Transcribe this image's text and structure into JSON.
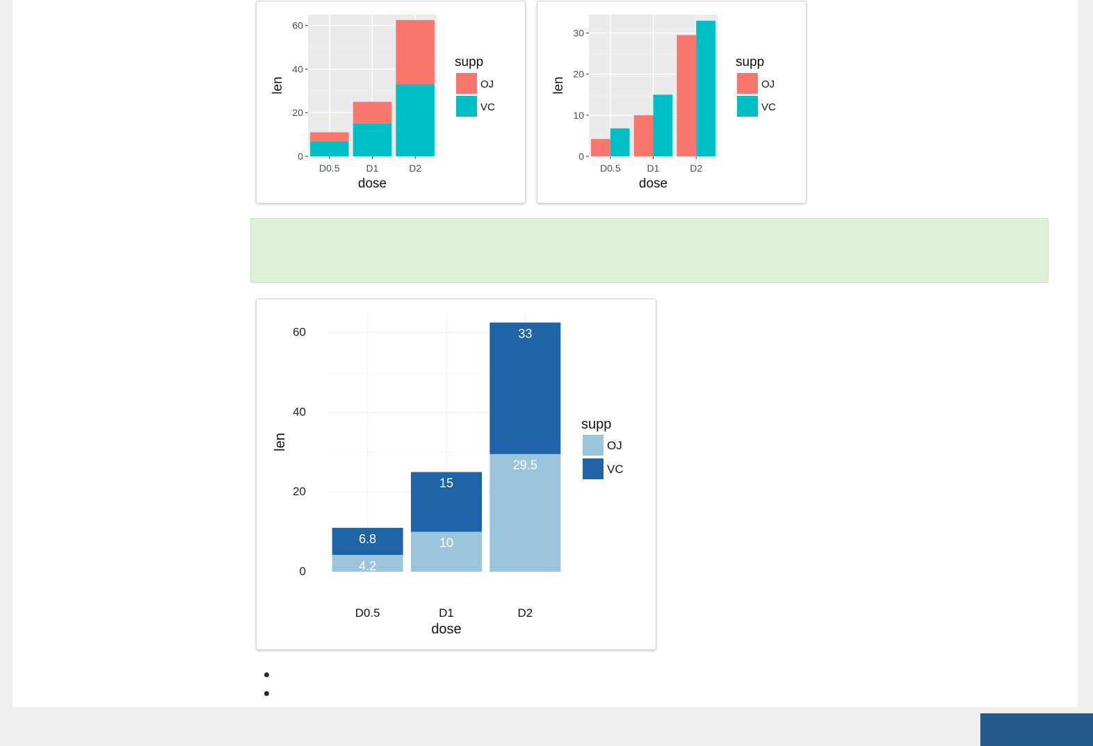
{
  "chart_data": [
    {
      "type": "bar",
      "mode": "stacked",
      "categories": [
        "D0.5",
        "D1",
        "D2"
      ],
      "series": [
        {
          "name": "OJ",
          "values": [
            4.2,
            10,
            29.5
          ]
        },
        {
          "name": "VC",
          "values": [
            6.8,
            15,
            33
          ]
        }
      ],
      "stack_order": [
        "VC",
        "OJ"
      ],
      "xlabel": "dose",
      "ylabel": "len",
      "ylim": [
        0,
        65
      ],
      "yticks": [
        0,
        20,
        40,
        60
      ],
      "grid": true,
      "legend_title": "supp",
      "legend_position": "right",
      "colors": {
        "OJ": "#f8766d",
        "VC": "#00bfc4"
      },
      "theme": "grey"
    },
    {
      "type": "bar",
      "mode": "dodged",
      "categories": [
        "D0.5",
        "D1",
        "D2"
      ],
      "series": [
        {
          "name": "OJ",
          "values": [
            4.2,
            10,
            29.5
          ]
        },
        {
          "name": "VC",
          "values": [
            6.8,
            15,
            33
          ]
        }
      ],
      "xlabel": "dose",
      "ylabel": "len",
      "ylim": [
        0,
        34.5
      ],
      "yticks": [
        0,
        10,
        20,
        30
      ],
      "grid": true,
      "legend_title": "supp",
      "legend_position": "right",
      "colors": {
        "OJ": "#f8766d",
        "VC": "#00bfc4"
      },
      "theme": "grey"
    },
    {
      "type": "bar",
      "mode": "stacked",
      "categories": [
        "D0.5",
        "D1",
        "D2"
      ],
      "series": [
        {
          "name": "OJ",
          "values": [
            4.2,
            10,
            29.5
          ],
          "labels": [
            "4.2",
            "10",
            "29.5"
          ]
        },
        {
          "name": "VC",
          "values": [
            6.8,
            15,
            33
          ],
          "labels": [
            "6.8",
            "15",
            "33"
          ]
        }
      ],
      "stack_order": [
        "OJ",
        "VC"
      ],
      "xlabel": "dose",
      "ylabel": "len",
      "ylim": [
        0,
        65
      ],
      "yticks": [
        0,
        20,
        40,
        60
      ],
      "grid": true,
      "legend_title": "supp",
      "legend_position": "right",
      "colors": {
        "OJ": "#9ac5dd",
        "VC": "#1e64a7"
      },
      "theme": "minimal"
    }
  ],
  "colors": {
    "note_box": "#dff0d8",
    "footer_block": "#225a8c"
  }
}
